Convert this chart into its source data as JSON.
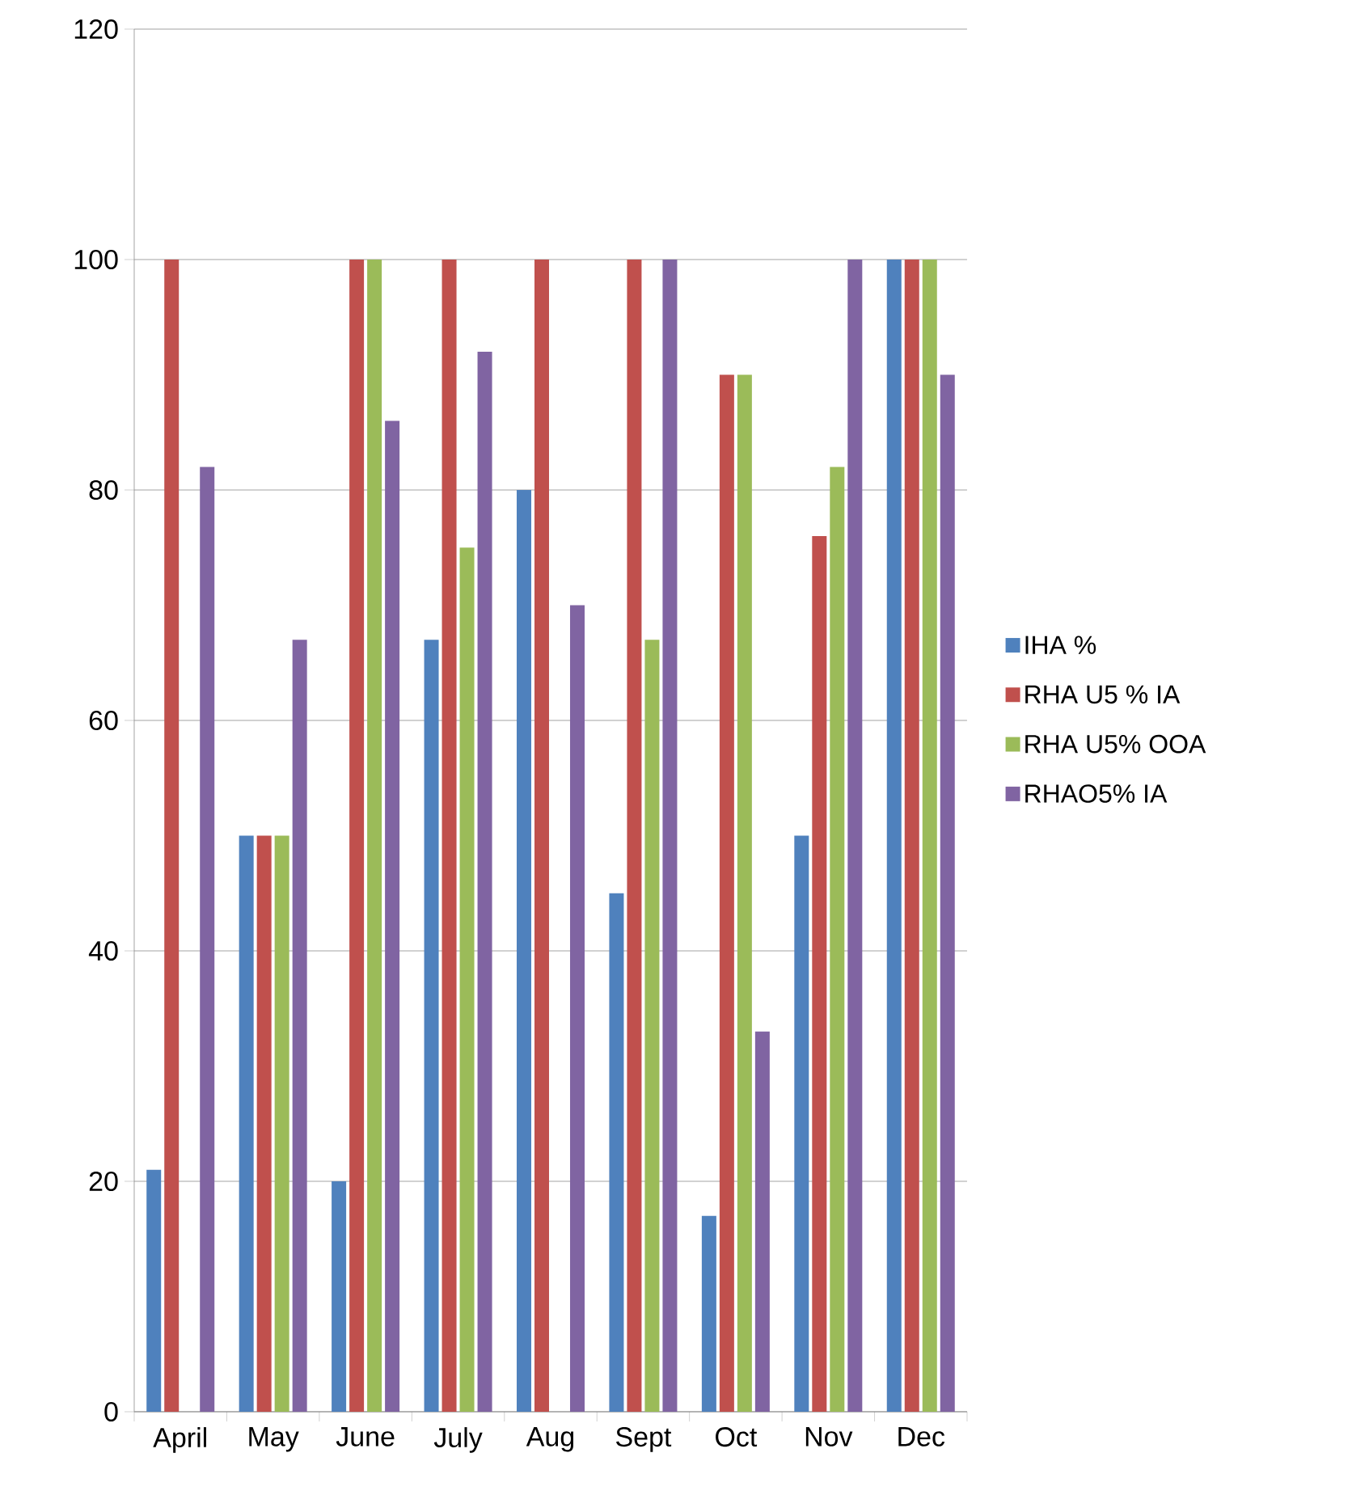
{
  "chart_data": {
    "type": "bar",
    "categories": [
      "April",
      "May",
      "June",
      "July",
      "Aug",
      "Sept",
      "Oct",
      "Nov",
      "Dec"
    ],
    "series": [
      {
        "name": "IHA %",
        "color": "#4f81bd",
        "values": [
          21,
          50,
          20,
          67,
          80,
          45,
          17,
          50,
          100
        ]
      },
      {
        "name": "RHA U5 % IA",
        "color": "#c0504d",
        "values": [
          100,
          50,
          100,
          100,
          100,
          100,
          90,
          76,
          100
        ]
      },
      {
        "name": "RHA U5% OOA",
        "color": "#9bbb59",
        "values": [
          0,
          50,
          100,
          75,
          0,
          67,
          90,
          82,
          100
        ]
      },
      {
        "name": "RHAO5% IA",
        "color": "#8064a2",
        "values": [
          82,
          67,
          86,
          92,
          70,
          100,
          33,
          100,
          90
        ]
      }
    ],
    "ylim": [
      0,
      120
    ],
    "yticks": [
      0,
      20,
      40,
      60,
      80,
      100,
      120
    ],
    "grid": "y",
    "legend": "right"
  }
}
